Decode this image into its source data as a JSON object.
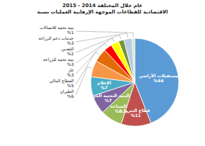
{
  "chart_data": {
    "type": "pie",
    "title": "2015 - 2014 عام خلال المختلفة الاقتصادية للقطاعات الموجهة الإرهابية العمليات نسبة",
    "categories": [
      "مستقبلات الأراضي",
      "قطاع البترول",
      "السياحة",
      "البنية التحتية الحربية",
      "الإعلام",
      "الطيران",
      "القطاع المالي",
      "غاز",
      "بنية تحتية للزراعة",
      "التعدين",
      "خدمات دعم الزراعة",
      "بنية تحتية للاتصالات"
    ],
    "values": [
      44,
      11,
      8,
      7,
      7,
      6,
      5,
      3,
      3,
      2,
      3,
      1
    ],
    "value_labels": [
      "%44",
      "%11",
      "%8",
      "%7",
      "%7",
      "%6",
      "%5",
      "%3",
      "%3",
      "%2",
      "%3",
      "%1"
    ],
    "colors": [
      "#5b9bd5",
      "#c0504d",
      "#9bbb59",
      "#8064a2",
      "#4bacc6",
      "#f79646",
      "#e36c09",
      "#ff0000",
      "#ffff00",
      "#76933c",
      "#b8cce4",
      "#d7e4bc"
    ],
    "data_labels": true
  }
}
